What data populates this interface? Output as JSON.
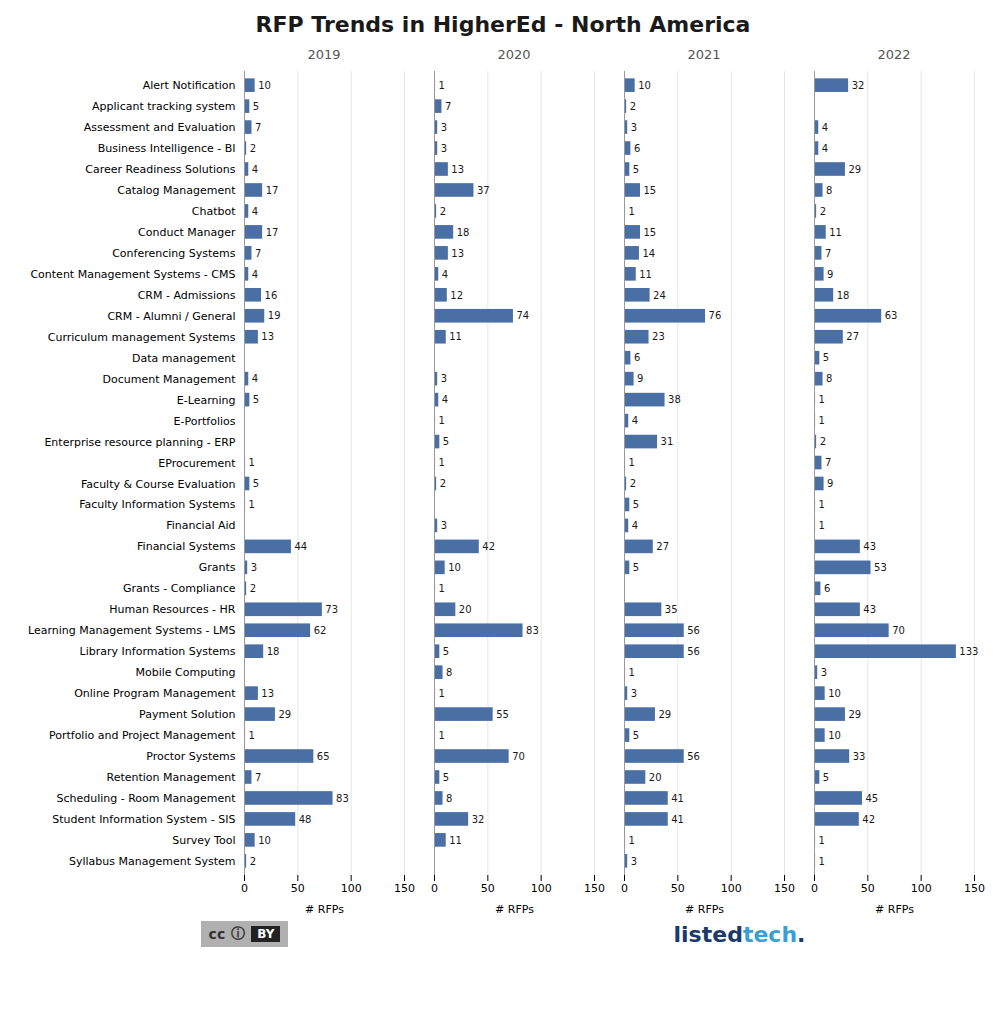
{
  "chart_data": {
    "type": "bar",
    "orientation": "horizontal",
    "title": "RFP Trends in HigherEd - North America",
    "categories": [
      "Alert Notification",
      "Applicant tracking system",
      "Assessment and Evaluation",
      "Business Intelligence - BI",
      "Career Readiness Solutions",
      "Catalog Management",
      "Chatbot",
      "Conduct Manager",
      "Conferencing Systems",
      "Content Management Systems - CMS",
      "CRM - Admissions",
      "CRM - Alumni / General",
      "Curriculum management Systems",
      "Data management",
      "Document Management",
      "E-Learning",
      "E-Portfolios",
      "Enterprise resource planning - ERP",
      "EProcurement",
      "Faculty & Course Evaluation",
      "Faculty Information Systems",
      "Financial Aid",
      "Financial Systems",
      "Grants",
      "Grants - Compliance",
      "Human Resources - HR",
      "Learning Management Systems - LMS",
      "Library Information Systems",
      "Mobile Computing",
      "Online Program Management",
      "Payment Solution",
      "Portfolio and Project Management",
      "Proctor Systems",
      "Retention Management",
      "Scheduling - Room Management",
      "Student Information System - SIS",
      "Survey Tool",
      "Syllabus Management System"
    ],
    "series": [
      {
        "name": "2019",
        "color": "#4a6fa5",
        "values": [
          10,
          5,
          7,
          2,
          4,
          17,
          4,
          17,
          7,
          4,
          16,
          19,
          13,
          0,
          4,
          5,
          0,
          0,
          1,
          5,
          1,
          0,
          44,
          3,
          2,
          73,
          62,
          18,
          0,
          13,
          29,
          1,
          65,
          7,
          83,
          48,
          10,
          2
        ]
      },
      {
        "name": "2020",
        "color": "#4a6fa5",
        "values": [
          1,
          7,
          3,
          3,
          13,
          37,
          2,
          18,
          13,
          4,
          12,
          74,
          11,
          0,
          3,
          4,
          1,
          5,
          1,
          2,
          0,
          3,
          42,
          10,
          1,
          20,
          83,
          5,
          8,
          1,
          55,
          1,
          70,
          5,
          8,
          32,
          11,
          0
        ]
      },
      {
        "name": "2021",
        "color": "#4a6fa5",
        "values": [
          10,
          2,
          3,
          6,
          5,
          15,
          1,
          15,
          14,
          11,
          24,
          76,
          23,
          6,
          9,
          38,
          4,
          31,
          1,
          2,
          5,
          4,
          27,
          5,
          0,
          35,
          56,
          56,
          1,
          3,
          29,
          5,
          56,
          20,
          41,
          41,
          1,
          3
        ]
      },
      {
        "name": "2022",
        "color": "#4a6fa5",
        "values": [
          32,
          0,
          4,
          4,
          29,
          8,
          2,
          11,
          7,
          9,
          18,
          63,
          27,
          5,
          8,
          1,
          1,
          2,
          7,
          9,
          1,
          1,
          43,
          53,
          6,
          43,
          70,
          133,
          3,
          10,
          29,
          10,
          33,
          5,
          45,
          42,
          1,
          1
        ]
      }
    ],
    "xlabel": "# RFPs",
    "xlim": [
      0,
      150
    ],
    "xticks": [
      0,
      50,
      100,
      150
    ],
    "grid": true,
    "data_labels": true,
    "annotations": [
      "cc",
      "ⓘ",
      "BY",
      "listed",
      "tech",
      "."
    ]
  }
}
